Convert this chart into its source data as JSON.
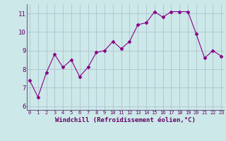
{
  "x": [
    0,
    1,
    2,
    3,
    4,
    5,
    6,
    7,
    8,
    9,
    10,
    11,
    12,
    13,
    14,
    15,
    16,
    17,
    18,
    19,
    20,
    21,
    22,
    23
  ],
  "y": [
    7.4,
    6.5,
    7.8,
    8.8,
    8.1,
    8.5,
    7.6,
    8.1,
    8.9,
    9.0,
    9.5,
    9.1,
    9.5,
    10.4,
    10.5,
    11.1,
    10.8,
    11.1,
    11.1,
    11.1,
    9.9,
    8.6,
    9.0,
    8.7
  ],
  "xlabel": "Windchill (Refroidissement éolien,°C)",
  "ylim": [
    5.8,
    11.5
  ],
  "yticks": [
    6,
    7,
    8,
    9,
    10,
    11
  ],
  "xticks": [
    0,
    1,
    2,
    3,
    4,
    5,
    6,
    7,
    8,
    9,
    10,
    11,
    12,
    13,
    14,
    15,
    16,
    17,
    18,
    19,
    20,
    21,
    22,
    23
  ],
  "line_color": "#880088",
  "marker": "D",
  "marker_size": 2.5,
  "bg_color": "#cce8e8",
  "grid_color": "#aabbcc",
  "tick_label_color": "#660066",
  "xlabel_color": "#660066",
  "ytick_label_size": 6.5,
  "xtick_label_size": 5.0,
  "xlabel_size": 6.5
}
